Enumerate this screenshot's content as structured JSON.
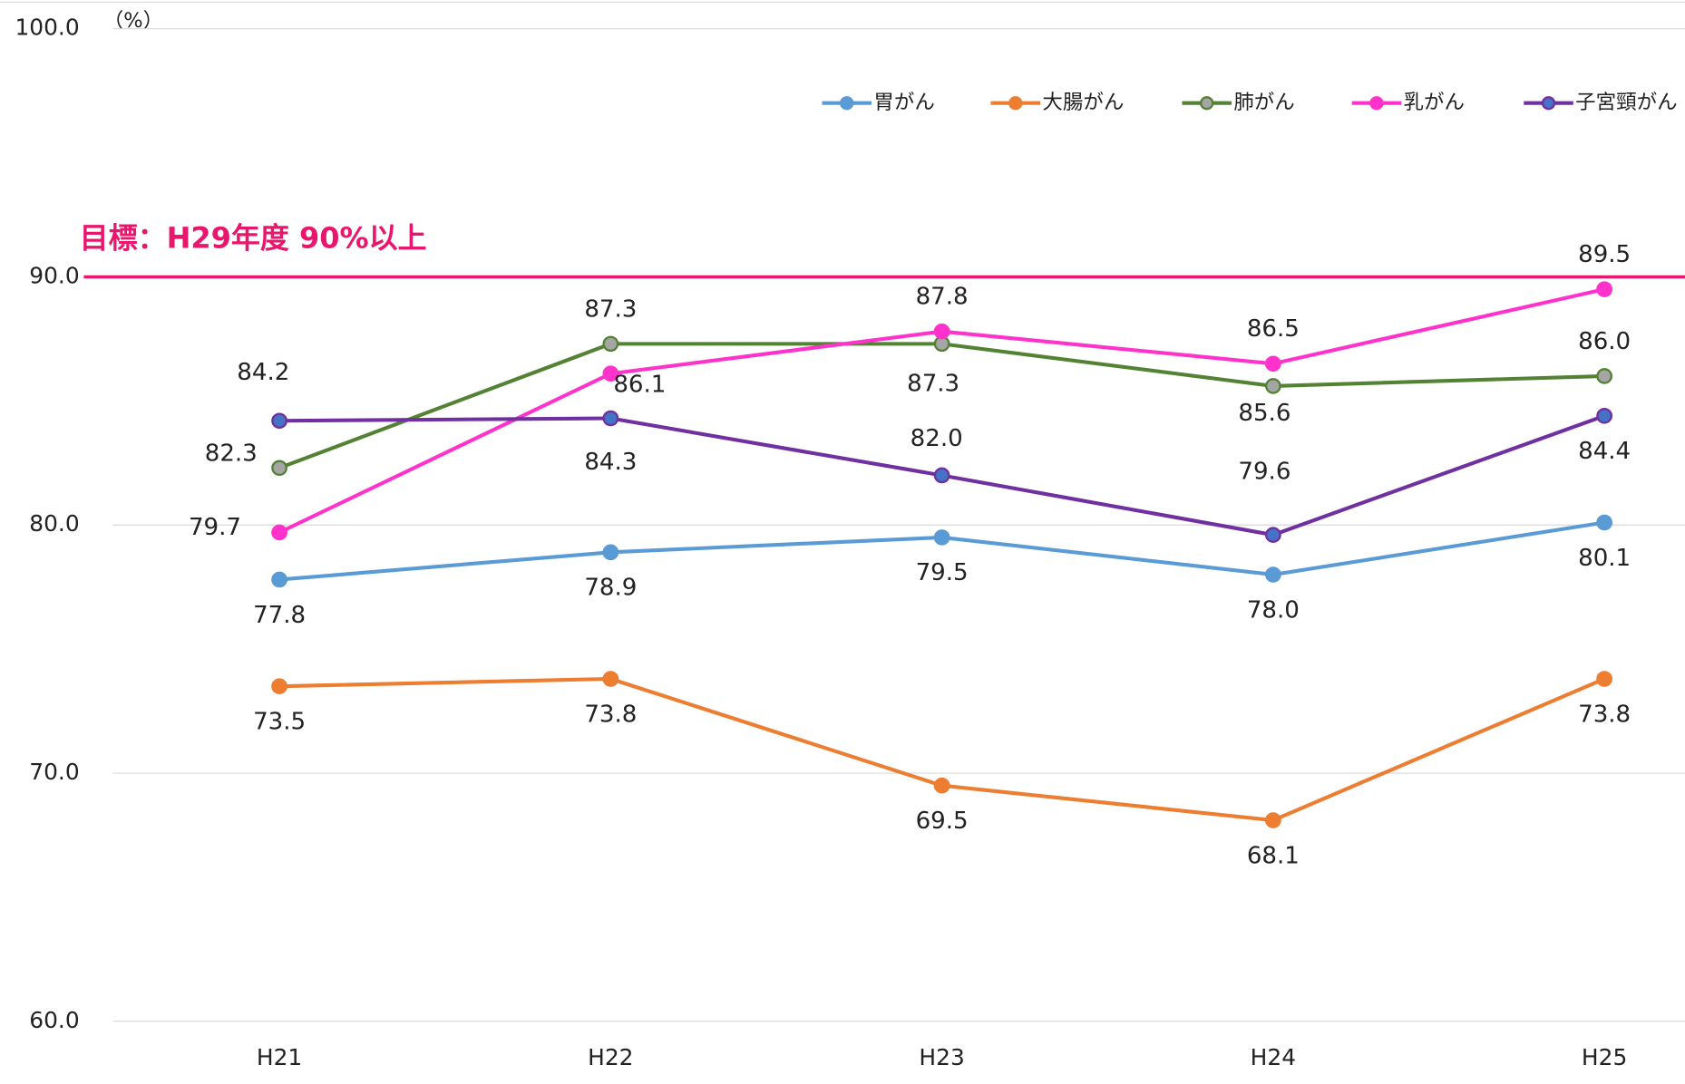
{
  "chart_data": {
    "type": "line",
    "y_unit": "（%）",
    "categories": [
      "H21",
      "H22",
      "H23",
      "H24",
      "H25"
    ],
    "ylim": [
      60,
      100
    ],
    "yticks": [
      {
        "value": 60,
        "label": "60.0"
      },
      {
        "value": 70,
        "label": "70.0"
      },
      {
        "value": 80,
        "label": "80.0"
      },
      {
        "value": 90,
        "label": "90.0"
      },
      {
        "value": 100,
        "label": "100.0"
      }
    ],
    "grid": true,
    "legend": "top-right",
    "target": {
      "value": 90,
      "label": "目標：H29年度 90%以上",
      "color": "#e8176d"
    },
    "series": [
      {
        "name": "胃がん",
        "color": "#5b9bd5",
        "values": [
          77.8,
          78.9,
          79.5,
          78.0,
          80.1
        ],
        "value_labels": [
          "77.8",
          "78.9",
          "79.5",
          "78.0",
          "80.1"
        ]
      },
      {
        "name": "大腸がん",
        "color": "#ed7d31",
        "values": [
          73.5,
          73.8,
          69.5,
          68.1,
          73.8
        ],
        "value_labels": [
          "73.5",
          "73.8",
          "69.5",
          "68.1",
          "73.8"
        ]
      },
      {
        "name": "肺がん",
        "color": "#548235",
        "marker_fill": "#a5a5a5",
        "values": [
          82.3,
          87.3,
          87.3,
          85.6,
          86.0
        ],
        "value_labels": [
          "82.3",
          "87.3",
          "87.3",
          "85.6",
          "86.0"
        ]
      },
      {
        "name": "乳がん",
        "color": "#ff33cc",
        "values": [
          79.7,
          86.1,
          87.8,
          86.5,
          89.5
        ],
        "value_labels": [
          "79.7",
          "86.1",
          "87.8",
          "86.5",
          "89.5"
        ]
      },
      {
        "name": "子宮頸がん",
        "color": "#7030a0",
        "marker_fill": "#4472c4",
        "values": [
          84.2,
          84.3,
          82.0,
          79.6,
          84.4
        ],
        "value_labels": [
          "84.2",
          "84.3",
          "82.0",
          "79.6",
          "84.4"
        ]
      }
    ]
  }
}
